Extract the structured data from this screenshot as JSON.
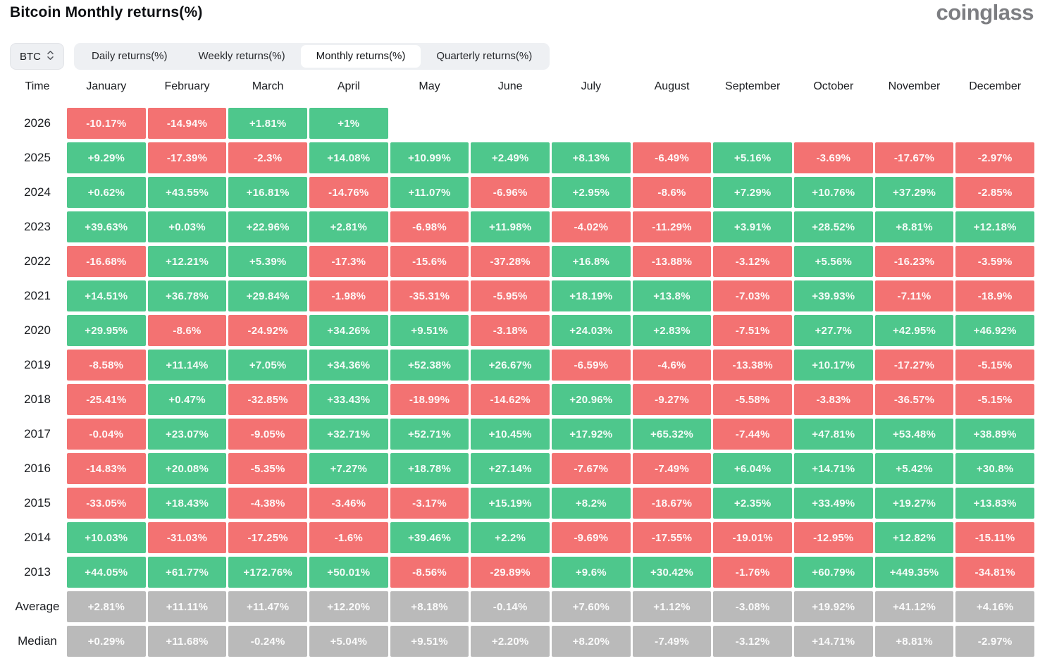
{
  "header": {
    "title": "Bitcoin Monthly returns(%)",
    "logo": "coinglass"
  },
  "controls": {
    "symbol": "BTC",
    "tabs": [
      {
        "label": "Daily returns(%)",
        "active": false
      },
      {
        "label": "Weekly returns(%)",
        "active": false
      },
      {
        "label": "Monthly returns(%)",
        "active": true
      },
      {
        "label": "Quarterly returns(%)",
        "active": false
      }
    ]
  },
  "colors": {
    "positive": "#4ec78c",
    "negative": "#f37272",
    "summary": "#bababa"
  },
  "chart_data": {
    "type": "heatmap",
    "title": "Bitcoin Monthly returns(%)",
    "row_header": "Time",
    "columns": [
      "January",
      "February",
      "March",
      "April",
      "May",
      "June",
      "July",
      "August",
      "September",
      "October",
      "November",
      "December"
    ],
    "rows": [
      {
        "label": "2026",
        "kind": "year",
        "values": [
          "-10.17%",
          "-14.94%",
          "+1.81%",
          "+1%",
          "",
          "",
          "",
          "",
          "",
          "",
          "",
          ""
        ]
      },
      {
        "label": "2025",
        "kind": "year",
        "values": [
          "+9.29%",
          "-17.39%",
          "-2.3%",
          "+14.08%",
          "+10.99%",
          "+2.49%",
          "+8.13%",
          "-6.49%",
          "+5.16%",
          "-3.69%",
          "-17.67%",
          "-2.97%"
        ]
      },
      {
        "label": "2024",
        "kind": "year",
        "values": [
          "+0.62%",
          "+43.55%",
          "+16.81%",
          "-14.76%",
          "+11.07%",
          "-6.96%",
          "+2.95%",
          "-8.6%",
          "+7.29%",
          "+10.76%",
          "+37.29%",
          "-2.85%"
        ]
      },
      {
        "label": "2023",
        "kind": "year",
        "values": [
          "+39.63%",
          "+0.03%",
          "+22.96%",
          "+2.81%",
          "-6.98%",
          "+11.98%",
          "-4.02%",
          "-11.29%",
          "+3.91%",
          "+28.52%",
          "+8.81%",
          "+12.18%"
        ]
      },
      {
        "label": "2022",
        "kind": "year",
        "values": [
          "-16.68%",
          "+12.21%",
          "+5.39%",
          "-17.3%",
          "-15.6%",
          "-37.28%",
          "+16.8%",
          "-13.88%",
          "-3.12%",
          "+5.56%",
          "-16.23%",
          "-3.59%"
        ]
      },
      {
        "label": "2021",
        "kind": "year",
        "values": [
          "+14.51%",
          "+36.78%",
          "+29.84%",
          "-1.98%",
          "-35.31%",
          "-5.95%",
          "+18.19%",
          "+13.8%",
          "-7.03%",
          "+39.93%",
          "-7.11%",
          "-18.9%"
        ]
      },
      {
        "label": "2020",
        "kind": "year",
        "values": [
          "+29.95%",
          "-8.6%",
          "-24.92%",
          "+34.26%",
          "+9.51%",
          "-3.18%",
          "+24.03%",
          "+2.83%",
          "-7.51%",
          "+27.7%",
          "+42.95%",
          "+46.92%"
        ]
      },
      {
        "label": "2019",
        "kind": "year",
        "values": [
          "-8.58%",
          "+11.14%",
          "+7.05%",
          "+34.36%",
          "+52.38%",
          "+26.67%",
          "-6.59%",
          "-4.6%",
          "-13.38%",
          "+10.17%",
          "-17.27%",
          "-5.15%"
        ]
      },
      {
        "label": "2018",
        "kind": "year",
        "values": [
          "-25.41%",
          "+0.47%",
          "-32.85%",
          "+33.43%",
          "-18.99%",
          "-14.62%",
          "+20.96%",
          "-9.27%",
          "-5.58%",
          "-3.83%",
          "-36.57%",
          "-5.15%"
        ]
      },
      {
        "label": "2017",
        "kind": "year",
        "values": [
          "-0.04%",
          "+23.07%",
          "-9.05%",
          "+32.71%",
          "+52.71%",
          "+10.45%",
          "+17.92%",
          "+65.32%",
          "-7.44%",
          "+47.81%",
          "+53.48%",
          "+38.89%"
        ]
      },
      {
        "label": "2016",
        "kind": "year",
        "values": [
          "-14.83%",
          "+20.08%",
          "-5.35%",
          "+7.27%",
          "+18.78%",
          "+27.14%",
          "-7.67%",
          "-7.49%",
          "+6.04%",
          "+14.71%",
          "+5.42%",
          "+30.8%"
        ]
      },
      {
        "label": "2015",
        "kind": "year",
        "values": [
          "-33.05%",
          "+18.43%",
          "-4.38%",
          "-3.46%",
          "-3.17%",
          "+15.19%",
          "+8.2%",
          "-18.67%",
          "+2.35%",
          "+33.49%",
          "+19.27%",
          "+13.83%"
        ]
      },
      {
        "label": "2014",
        "kind": "year",
        "values": [
          "+10.03%",
          "-31.03%",
          "-17.25%",
          "-1.6%",
          "+39.46%",
          "+2.2%",
          "-9.69%",
          "-17.55%",
          "-19.01%",
          "-12.95%",
          "+12.82%",
          "-15.11%"
        ]
      },
      {
        "label": "2013",
        "kind": "year",
        "values": [
          "+44.05%",
          "+61.77%",
          "+172.76%",
          "+50.01%",
          "-8.56%",
          "-29.89%",
          "+9.6%",
          "+30.42%",
          "-1.76%",
          "+60.79%",
          "+449.35%",
          "-34.81%"
        ]
      },
      {
        "label": "Average",
        "kind": "summary",
        "values": [
          "+2.81%",
          "+11.11%",
          "+11.47%",
          "+12.20%",
          "+8.18%",
          "-0.14%",
          "+7.60%",
          "+1.12%",
          "-3.08%",
          "+19.92%",
          "+41.12%",
          "+4.16%"
        ]
      },
      {
        "label": "Median",
        "kind": "summary",
        "values": [
          "+0.29%",
          "+11.68%",
          "-0.24%",
          "+5.04%",
          "+9.51%",
          "+2.20%",
          "+8.20%",
          "-7.49%",
          "-3.12%",
          "+14.71%",
          "+8.81%",
          "-2.97%"
        ]
      }
    ]
  }
}
